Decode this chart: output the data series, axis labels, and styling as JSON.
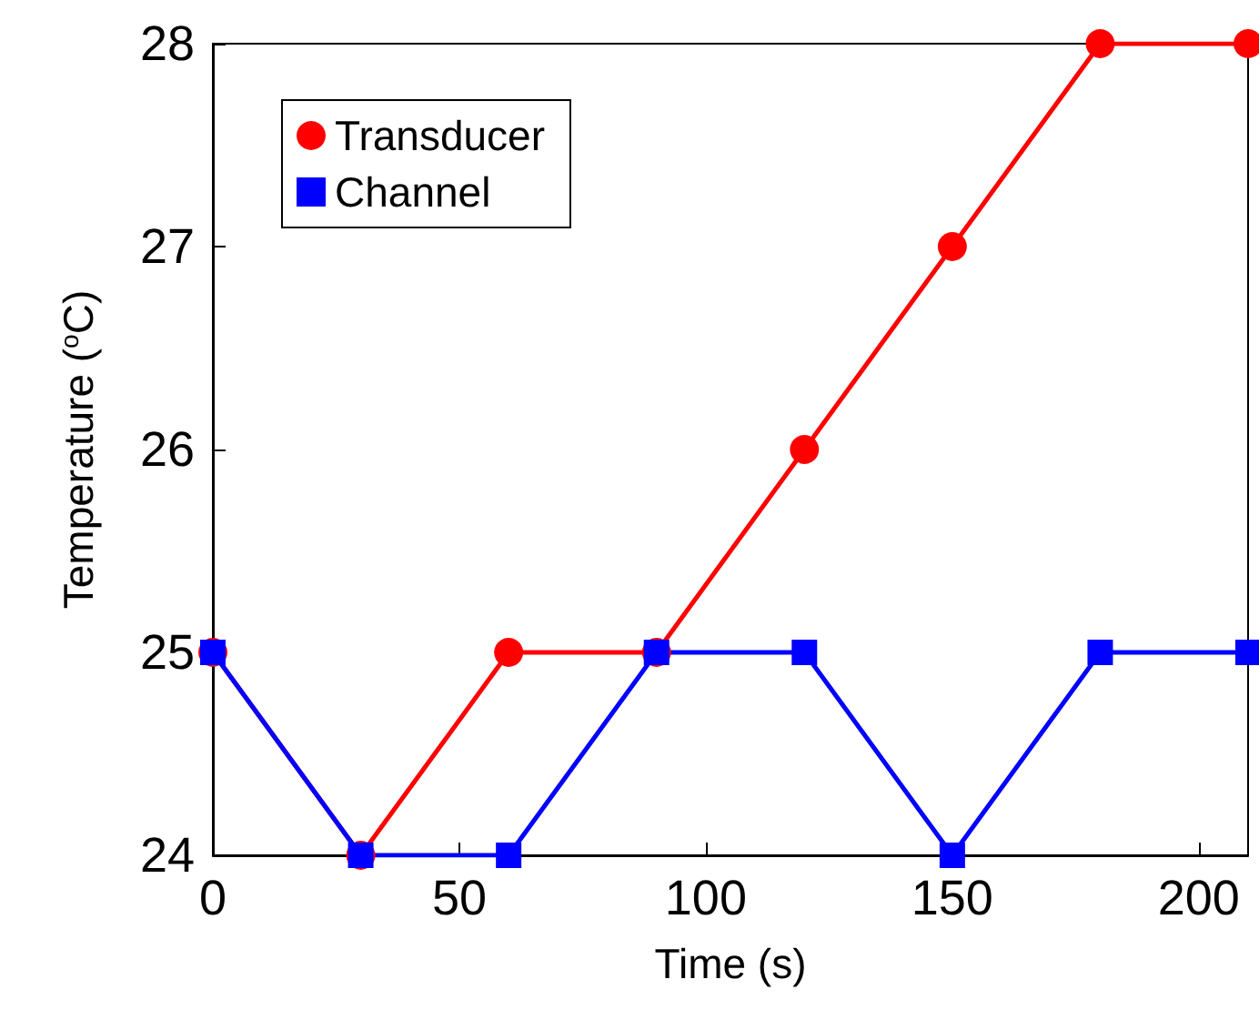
{
  "chart_data": {
    "type": "line",
    "xlabel": "Time (s)",
    "ylabel": "Temperature ($^{o}$C)",
    "x": [
      0,
      30,
      60,
      90,
      120,
      150,
      180,
      210
    ],
    "series": [
      {
        "name": "Transducer",
        "color": "#ff0000",
        "marker": "circle",
        "values": [
          25,
          24,
          25,
          25,
          26,
          27,
          28,
          28
        ]
      },
      {
        "name": "Channel",
        "color": "#0000ff",
        "marker": "square",
        "values": [
          25,
          24,
          24,
          25,
          25,
          24,
          25,
          25
        ]
      }
    ],
    "xlim": [
      0,
      210
    ],
    "xticks": [
      0,
      50,
      100,
      150,
      200
    ],
    "ylim": [
      24,
      28
    ],
    "yticks": [
      24,
      25,
      26,
      27,
      28
    ],
    "grid": false,
    "legend": "top left",
    "line_style": "solid"
  }
}
